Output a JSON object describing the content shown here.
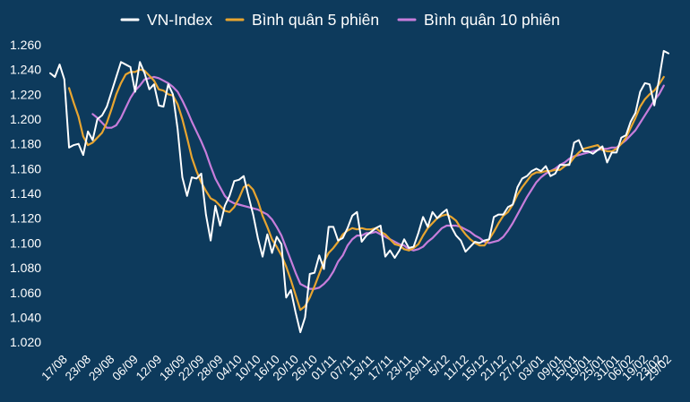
{
  "chart_data": {
    "type": "line",
    "title": "",
    "xlabel": "",
    "ylabel": "",
    "ylim": [
      1010,
      1265
    ],
    "yticks": [
      1020,
      1040,
      1060,
      1080,
      1100,
      1120,
      1140,
      1160,
      1180,
      1200,
      1220,
      1240,
      1260
    ],
    "ytick_labels": [
      "1.020",
      "1.040",
      "1.060",
      "1.080",
      "1.100",
      "1.120",
      "1.140",
      "1.160",
      "1.180",
      "1.200",
      "1.220",
      "1.240",
      "1.260"
    ],
    "n_points": 132,
    "x_labels": [
      {
        "i": 3,
        "label": "17/08"
      },
      {
        "i": 8,
        "label": "23/08"
      },
      {
        "i": 13,
        "label": "29/08"
      },
      {
        "i": 18,
        "label": "06/09"
      },
      {
        "i": 23,
        "label": "12/09"
      },
      {
        "i": 28,
        "label": "18/09"
      },
      {
        "i": 32,
        "label": "22/09"
      },
      {
        "i": 36,
        "label": "28/09"
      },
      {
        "i": 40,
        "label": "04/10"
      },
      {
        "i": 44,
        "label": "10/10"
      },
      {
        "i": 48,
        "label": "16/10"
      },
      {
        "i": 52,
        "label": "20/10"
      },
      {
        "i": 56,
        "label": "26/10"
      },
      {
        "i": 60,
        "label": "01/11"
      },
      {
        "i": 64,
        "label": "07/11"
      },
      {
        "i": 68,
        "label": "13/11"
      },
      {
        "i": 72,
        "label": "17/11"
      },
      {
        "i": 76,
        "label": "23/11"
      },
      {
        "i": 80,
        "label": "29/11"
      },
      {
        "i": 84,
        "label": "5/12"
      },
      {
        "i": 88,
        "label": "11/12"
      },
      {
        "i": 92,
        "label": "15/12"
      },
      {
        "i": 96,
        "label": "21/12"
      },
      {
        "i": 100,
        "label": "27/12"
      },
      {
        "i": 104,
        "label": "03/01"
      },
      {
        "i": 108,
        "label": "09/01"
      },
      {
        "i": 111,
        "label": "15/01"
      },
      {
        "i": 114,
        "label": "19/01"
      },
      {
        "i": 117,
        "label": "25/01"
      },
      {
        "i": 120,
        "label": "31/01"
      },
      {
        "i": 123,
        "label": "06/02"
      },
      {
        "i": 126,
        "label": "19/02"
      },
      {
        "i": 129,
        "label": "23/02"
      },
      {
        "i": 131,
        "label": "29/02"
      }
    ],
    "legend_position": "top-center",
    "series": [
      {
        "name": "VN-Index",
        "color": "#ffffff",
        "values": [
          1237,
          1234,
          1244,
          1232,
          1177,
          1179,
          1180,
          1171,
          1190,
          1183,
          1200,
          1203,
          1210,
          1222,
          1234,
          1246,
          1244,
          1242,
          1222,
          1246,
          1237,
          1224,
          1228,
          1211,
          1210,
          1228,
          1220,
          1192,
          1153,
          1138,
          1153,
          1152,
          1156,
          1123,
          1102,
          1130,
          1114,
          1130,
          1138,
          1150,
          1151,
          1154,
          1138,
          1123,
          1104,
          1089,
          1107,
          1092,
          1105,
          1099,
          1056,
          1062,
          1044,
          1028,
          1040,
          1075,
          1076,
          1090,
          1079,
          1113,
          1113,
          1102,
          1104,
          1112,
          1122,
          1125,
          1101,
          1106,
          1109,
          1112,
          1114,
          1089,
          1094,
          1088,
          1094,
          1103,
          1096,
          1097,
          1108,
          1121,
          1113,
          1125,
          1120,
          1124,
          1127,
          1113,
          1106,
          1102,
          1093,
          1097,
          1101,
          1100,
          1102,
          1103,
          1121,
          1123,
          1123,
          1129,
          1131,
          1145,
          1152,
          1154,
          1158,
          1160,
          1158,
          1162,
          1154,
          1156,
          1163,
          1163,
          1163,
          1181,
          1183,
          1174,
          1174,
          1172,
          1175,
          1178,
          1165,
          1173,
          1173,
          1185,
          1187,
          1198,
          1205,
          1222,
          1229,
          1228,
          1211,
          1232,
          1255,
          1253
        ]
      },
      {
        "name": "Bình quân 5 phiên",
        "color": "#e8a530",
        "values": [
          null,
          null,
          null,
          null,
          1225,
          1213,
          1202,
          1186,
          1179,
          1181,
          1185,
          1189,
          1197,
          1208,
          1220,
          1229,
          1236,
          1238,
          1238,
          1240,
          1239,
          1235,
          1231,
          1224,
          1223,
          1220,
          1219,
          1212,
          1200,
          1185,
          1169,
          1158,
          1149,
          1142,
          1136,
          1134,
          1130,
          1126,
          1125,
          1129,
          1136,
          1145,
          1147,
          1143,
          1134,
          1122,
          1113,
          1103,
          1097,
          1090,
          1081,
          1070,
          1058,
          1046,
          1049,
          1056,
          1065,
          1075,
          1085,
          1092,
          1096,
          1101,
          1107,
          1110,
          1112,
          1111,
          1112,
          1111,
          1111,
          1112,
          1109,
          1107,
          1103,
          1099,
          1098,
          1095,
          1094,
          1096,
          1099,
          1106,
          1112,
          1116,
          1120,
          1122,
          1123,
          1121,
          1118,
          1112,
          1107,
          1103,
          1100,
          1098,
          1098,
          1103,
          1109,
          1116,
          1122,
          1125,
          1131,
          1139,
          1145,
          1150,
          1155,
          1157,
          1157,
          1158,
          1158,
          1159,
          1159,
          1162,
          1164,
          1169,
          1173,
          1176,
          1177,
          1178,
          1179,
          1175,
          1174,
          1174,
          1176,
          1180,
          1185,
          1193,
          1201,
          1210,
          1216,
          1220,
          1223,
          1228,
          1234
        ]
      },
      {
        "name": "Bình quân 10 phiên",
        "color": "#c77ddb",
        "values": [
          null,
          null,
          null,
          null,
          null,
          null,
          null,
          null,
          null,
          1204,
          1201,
          1197,
          1193,
          1193,
          1195,
          1201,
          1209,
          1217,
          1223,
          1227,
          1232,
          1233,
          1234,
          1233,
          1231,
          1229,
          1226,
          1222,
          1215,
          1207,
          1198,
          1190,
          1182,
          1173,
          1162,
          1152,
          1145,
          1138,
          1134,
          1132,
          1131,
          1130,
          1129,
          1128,
          1127,
          1125,
          1123,
          1119,
          1113,
          1106,
          1096,
          1086,
          1076,
          1067,
          1065,
          1063,
          1063,
          1064,
          1067,
          1071,
          1077,
          1085,
          1090,
          1098,
          1103,
          1106,
          1106,
          1108,
          1108,
          1109,
          1107,
          1105,
          1103,
          1101,
          1099,
          1098,
          1095,
          1094,
          1095,
          1097,
          1101,
          1104,
          1108,
          1112,
          1114,
          1114,
          1114,
          1113,
          1111,
          1109,
          1106,
          1104,
          1101,
          1100,
          1101,
          1102,
          1105,
          1110,
          1116,
          1123,
          1130,
          1137,
          1143,
          1149,
          1153,
          1156,
          1158,
          1160,
          1163,
          1165,
          1168,
          1170,
          1171,
          1172,
          1173,
          1174,
          1175,
          1176,
          1176,
          1177,
          1177,
          1180,
          1183,
          1187,
          1191,
          1197,
          1203,
          1209,
          1215,
          1220,
          1227
        ]
      }
    ]
  }
}
